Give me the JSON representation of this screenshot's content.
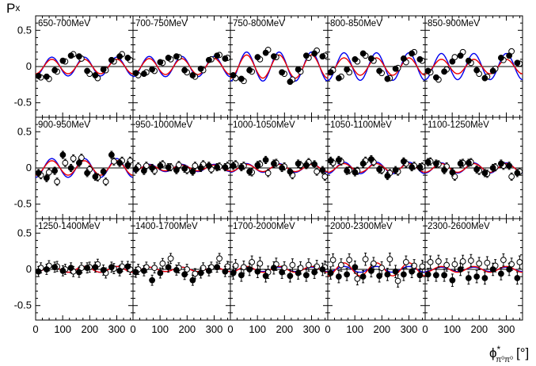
{
  "chart_data": {
    "type": "scatter",
    "ylabel": "P_x",
    "xlabel": "ϕ*_{π⁰π⁰} [°]",
    "xlim": [
      0,
      360
    ],
    "ylim": [
      -0.7,
      0.7
    ],
    "xticks": [
      0,
      100,
      200,
      300
    ],
    "yticks": [
      -0.5,
      0,
      0.5
    ],
    "ylabel_text": {
      "main": "P",
      "sub": "x"
    },
    "xlabel_text": {
      "main": "ϕ",
      "star": "*",
      "sub": "π⁰π⁰",
      "unit": "[°]"
    },
    "panels": [
      {
        "label": "650-700MeV",
        "amp_blue": 0.13,
        "amp_red": 0.1,
        "filled": [
          -0.13,
          -0.14,
          -0.05,
          0.08,
          0.15,
          0.14,
          -0.06,
          -0.12,
          -0.04,
          0.09,
          0.14,
          0.12
        ],
        "open": [
          -0.15,
          -0.17,
          -0.07,
          0.07,
          0.17,
          0.11,
          -0.1,
          -0.16,
          -0.05,
          0.07,
          0.17,
          0.09
        ]
      },
      {
        "label": "700-750MeV",
        "amp_blue": 0.14,
        "amp_red": 0.11,
        "filled": [
          -0.09,
          -0.1,
          -0.04,
          0.06,
          0.12,
          0.14,
          -0.05,
          -0.12,
          -0.03,
          0.09,
          0.15,
          0.11
        ],
        "open": [
          -0.12,
          -0.08,
          -0.06,
          0.05,
          0.1,
          0.13,
          -0.08,
          -0.14,
          -0.05,
          0.1,
          0.16,
          0.12
        ]
      },
      {
        "label": "750-800MeV",
        "amp_blue": 0.2,
        "amp_red": 0.16,
        "filled": [
          -0.12,
          -0.17,
          -0.05,
          0.13,
          0.19,
          0.14,
          -0.08,
          -0.21,
          -0.04,
          0.15,
          0.18,
          0.14
        ],
        "open": [
          -0.16,
          -0.2,
          -0.07,
          0.1,
          0.23,
          0.13,
          -0.1,
          -0.18,
          -0.07,
          0.12,
          0.22,
          0.15
        ]
      },
      {
        "label": "800-850MeV",
        "amp_blue": 0.19,
        "amp_red": 0.12,
        "filled": [
          -0.08,
          -0.16,
          -0.04,
          0.1,
          0.18,
          0.11,
          -0.06,
          -0.17,
          -0.03,
          0.11,
          0.18,
          0.1
        ],
        "open": [
          -0.05,
          -0.14,
          -0.08,
          0.07,
          0.15,
          0.08,
          -0.09,
          -0.16,
          -0.02,
          0.06,
          0.2,
          0.08
        ]
      },
      {
        "label": "850-900MeV",
        "amp_blue": 0.18,
        "amp_red": 0.1,
        "filled": [
          -0.06,
          -0.15,
          -0.07,
          0.07,
          0.15,
          0.08,
          -0.05,
          -0.16,
          -0.06,
          0.12,
          0.15,
          0.05
        ],
        "open": [
          -0.08,
          -0.18,
          -0.04,
          0.13,
          0.2,
          0.05,
          -0.1,
          -0.14,
          -0.03,
          0.09,
          0.21,
          0.04
        ]
      },
      {
        "label": "900-950MeV",
        "amp_blue": 0.13,
        "amp_red": 0.1,
        "filled": [
          -0.07,
          -0.14,
          -0.04,
          0.18,
          0.0,
          0.07,
          -0.07,
          -0.12,
          -0.05,
          0.18,
          0.07,
          0.04
        ],
        "open": [
          -0.1,
          -0.06,
          -0.19,
          0.07,
          0.13,
          0.14,
          -0.02,
          -0.13,
          -0.19,
          0.09,
          0.1,
          0.1
        ]
      },
      {
        "label": "950-1000MeV",
        "amp_blue": 0.05,
        "amp_red": 0.04,
        "filled": [
          -0.02,
          -0.04,
          0.0,
          0.03,
          0.01,
          -0.03,
          -0.01,
          -0.05,
          0.0,
          0.03,
          0.01,
          0.01
        ],
        "open": [
          0.02,
          0.03,
          -0.04,
          0.05,
          0.01,
          0.04,
          -0.03,
          0.03,
          0.05,
          -0.02,
          0.02,
          0.03
        ]
      },
      {
        "label": "1000-1050MeV",
        "amp_blue": 0.06,
        "amp_red": 0.05,
        "filled": [
          0.03,
          0.01,
          -0.05,
          0.04,
          0.11,
          0.06,
          0.0,
          -0.05,
          0.06,
          0.04,
          0.05,
          -0.03
        ],
        "open": [
          0.05,
          0.03,
          -0.06,
          0.05,
          -0.07,
          0.07,
          0.02,
          -0.1,
          0.04,
          0.08,
          -0.05,
          -0.12
        ]
      },
      {
        "label": "1050-1100MeV",
        "amp_blue": 0.08,
        "amp_red": 0.06,
        "filled": [
          0.1,
          0.11,
          -0.04,
          -0.06,
          0.06,
          0.12,
          -0.02,
          -0.11,
          -0.03,
          0.09,
          0.01,
          0.01
        ],
        "open": [
          0.07,
          0.09,
          -0.03,
          -0.04,
          0.1,
          0.08,
          -0.03,
          -0.07,
          -0.05,
          0.06,
          0.03,
          0.02
        ]
      },
      {
        "label": "1100-1250MeV",
        "amp_blue": 0.07,
        "amp_red": 0.06,
        "filled": [
          0.08,
          0.06,
          -0.03,
          -0.06,
          0.06,
          0.07,
          -0.02,
          -0.07,
          0.0,
          0.06,
          0.03,
          -0.07
        ],
        "open": [
          0.09,
          0.05,
          0.02,
          -0.12,
          0.07,
          0.08,
          -0.04,
          -0.08,
          0.01,
          0.03,
          -0.12,
          -0.05
        ]
      },
      {
        "label": "1250-1400MeV",
        "amp_blue": 0.04,
        "amp_red": 0.04,
        "filled": [
          -0.03,
          0.0,
          0.03,
          -0.02,
          0.02,
          -0.04,
          0.02,
          0.03,
          -0.01,
          0.03,
          -0.02,
          0.04
        ],
        "open": [
          0.02,
          0.05,
          0.04,
          0.0,
          -0.03,
          0.02,
          0.03,
          0.07,
          -0.05,
          0.01,
          0.04,
          0.0
        ]
      },
      {
        "label": "1400-1700MeV",
        "amp_blue": 0.03,
        "amp_red": 0.03,
        "filled": [
          -0.04,
          -0.02,
          -0.15,
          -0.05,
          0.03,
          -0.01,
          -0.07,
          -0.15,
          -0.05,
          -0.02,
          0.03,
          -0.03
        ],
        "open": [
          0.0,
          0.03,
          0.02,
          0.08,
          0.15,
          0.02,
          0.0,
          -0.06,
          0.02,
          0.03,
          0.15,
          0.04
        ]
      },
      {
        "label": "1700-2000MeV",
        "amp_blue": 0.03,
        "amp_red": 0.04,
        "filled": [
          -0.05,
          -0.08,
          0.0,
          -0.03,
          -0.09,
          0.02,
          -0.04,
          -0.09,
          -0.05,
          -0.08,
          -0.04,
          0.0
        ],
        "open": [
          0.05,
          0.03,
          0.1,
          0.08,
          -0.04,
          0.07,
          0.02,
          0.06,
          0.02,
          0.06,
          0.04,
          0.03
        ]
      },
      {
        "label": "2000-2300MeV",
        "amp_blue": 0.04,
        "amp_red": 0.09,
        "filled": [
          -0.05,
          -0.1,
          -0.07,
          0.03,
          -0.1,
          -0.02,
          -0.09,
          -0.07,
          -0.03,
          -0.07,
          -0.03,
          -0.08
        ],
        "open": [
          0.13,
          0.06,
          0.13,
          -0.13,
          0.14,
          0.08,
          0.02,
          0.14,
          -0.16,
          0.1,
          0.05,
          0.04
        ]
      },
      {
        "label": "2300-2600MeV",
        "amp_blue": 0.03,
        "amp_red": 0.04,
        "filled": [
          -0.07,
          -0.08,
          -0.08,
          -0.15,
          0.0,
          -0.12,
          -0.1,
          -0.12,
          0.0,
          -0.06,
          0.0,
          -0.12
        ],
        "open": [
          0.1,
          0.11,
          0.06,
          0.07,
          0.11,
          0.12,
          0.08,
          0.09,
          0.05,
          0.13,
          0.07,
          0.1
        ]
      }
    ]
  }
}
